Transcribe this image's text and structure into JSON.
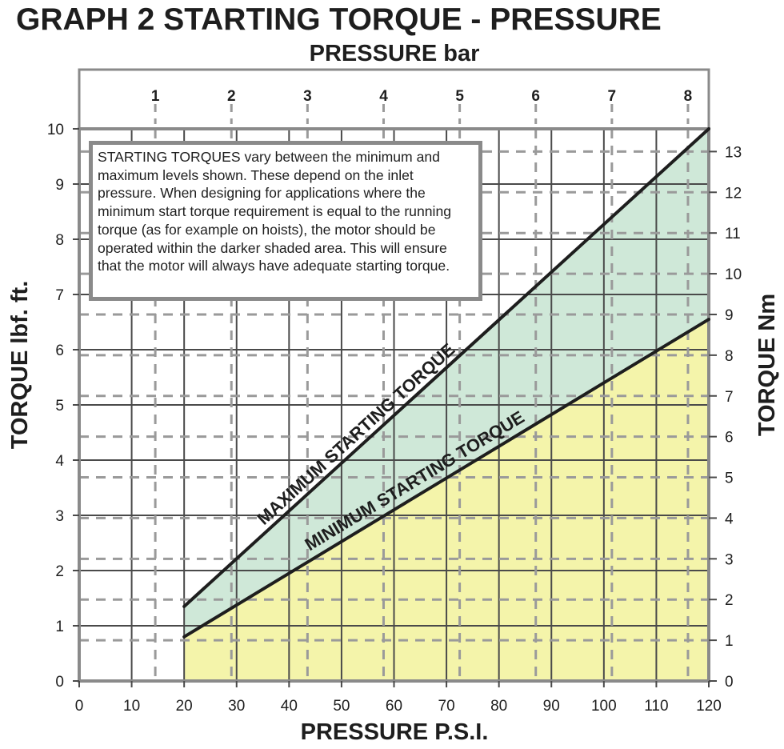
{
  "chart_data": {
    "type": "area",
    "title": "GRAPH 2 STARTING TORQUE - PRESSURE",
    "x_bottom": {
      "label": "PRESSURE P.S.I.",
      "range": [
        0,
        120
      ],
      "ticks": [
        0,
        10,
        20,
        30,
        40,
        50,
        60,
        70,
        80,
        90,
        100,
        110,
        120
      ]
    },
    "x_top": {
      "label": "PRESSURE bar",
      "ticks": [
        1,
        2,
        3,
        4,
        5,
        6,
        7,
        8
      ]
    },
    "y_left": {
      "label": "TORQUE lbf. ft.",
      "range": [
        0,
        10
      ],
      "ticks": [
        0,
        1,
        2,
        3,
        4,
        5,
        6,
        7,
        8,
        9,
        10
      ]
    },
    "y_right": {
      "label": "TORQUE Nm",
      "ticks": [
        0,
        1,
        2,
        3,
        4,
        5,
        6,
        7,
        8,
        9,
        10,
        11,
        12,
        13
      ]
    },
    "grid": true,
    "series": [
      {
        "name": "MAXIMUM STARTING TORQUE",
        "x": [
          20,
          120
        ],
        "y": [
          1.35,
          10.0
        ],
        "color": "#1e1e1e",
        "fill": "#cfe8d8"
      },
      {
        "name": "MINIMUM STARTING TORQUE",
        "x": [
          20,
          120
        ],
        "y": [
          0.8,
          6.55
        ],
        "color": "#1e1e1e",
        "fill": "#f4f4aa"
      }
    ],
    "annotation": "STARTING TORQUES vary between the minimum and maximum levels shown. These depend on the inlet pressure. When designing for applications where the minimum start torque requirement is equal to the running torque (as for example on hoists), the motor should be operated within the darker shaded area. This will ensure that the motor will always have adequate starting torque."
  }
}
